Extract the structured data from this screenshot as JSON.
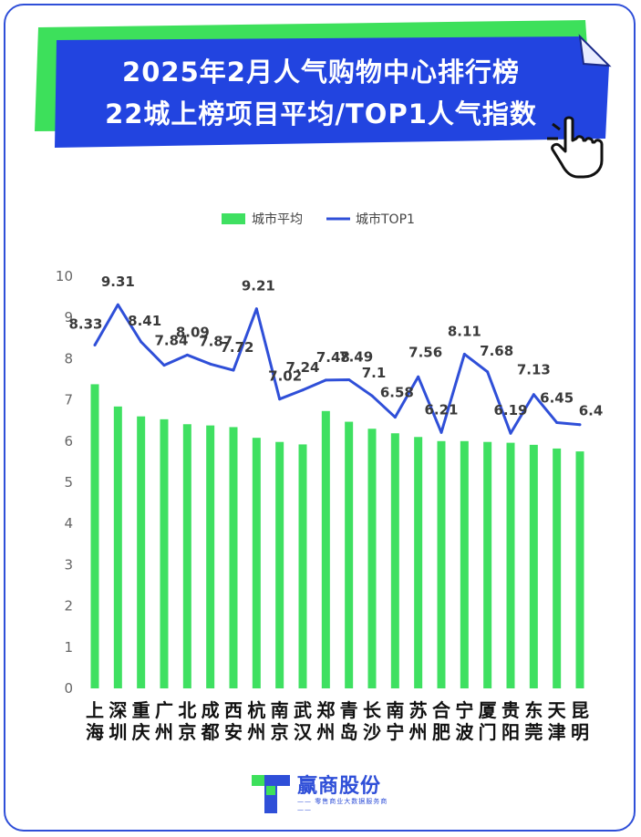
{
  "header": {
    "title_line1": "2025年2月人气购物中心排行榜",
    "title_line2": "22城上榜项目平均/TOP1人气指数"
  },
  "brand": {
    "name": "赢商股份",
    "tagline": "—— 零售商业大数据服务商 ——"
  },
  "colors": {
    "bar": "#3fe061",
    "line": "#2f4fd8",
    "banner_blue": "#2244e0",
    "banner_green": "#3de05b",
    "frame": "#2f4fd8"
  },
  "chart_data": {
    "type": "bar",
    "legend_position": "top-center",
    "grid": false,
    "ylim": [
      0,
      10
    ],
    "yticks": [
      "0",
      "1",
      "2",
      "3",
      "4",
      "5",
      "6",
      "7",
      "8",
      "9",
      "10"
    ],
    "categories": [
      "上海",
      "深圳",
      "重庆",
      "广州",
      "北京",
      "成都",
      "西安",
      "杭州",
      "南京",
      "武汉",
      "郑州",
      "青岛",
      "长沙",
      "南宁",
      "苏州",
      "合肥",
      "宁波",
      "厦门",
      "贵阳",
      "东莞",
      "天津",
      "昆明"
    ],
    "series": [
      {
        "name": "城市平均",
        "type": "bar",
        "values": [
          7.38,
          6.84,
          6.6,
          6.53,
          6.41,
          6.38,
          6.34,
          6.08,
          5.98,
          5.92,
          6.73,
          6.47,
          6.3,
          6.19,
          6.1,
          6.0,
          6.0,
          5.98,
          5.96,
          5.91,
          5.82,
          5.75
        ]
      },
      {
        "name": "城市TOP1",
        "type": "line",
        "values": [
          8.33,
          9.31,
          8.41,
          7.84,
          8.09,
          7.87,
          7.72,
          9.21,
          7.02,
          7.24,
          7.48,
          7.49,
          7.1,
          6.58,
          7.56,
          6.21,
          8.11,
          7.68,
          6.19,
          7.13,
          6.45,
          6.4
        ],
        "labels": [
          "8.33",
          "9.31",
          "8.41",
          "7.84",
          "8.09",
          "7.87",
          "7.72",
          "9.21",
          "7.02",
          "7.24",
          "7.48",
          "7.49",
          "7.1",
          "6.58",
          "7.56",
          "6.21",
          "8.11",
          "7.68",
          "6.19",
          "7.13",
          "6.45",
          "6.4"
        ]
      }
    ]
  }
}
